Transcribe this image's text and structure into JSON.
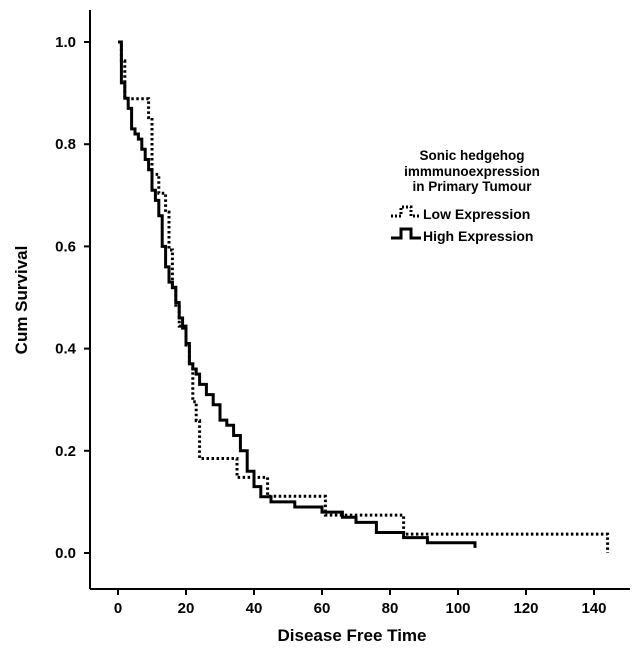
{
  "chart_data": {
    "type": "line",
    "title": "",
    "xlabel": "Disease Free Time",
    "ylabel": "Cum Survival",
    "xlim": [
      -10,
      150
    ],
    "ylim": [
      -0.05,
      1.05
    ],
    "x_ticks": [
      0,
      20,
      40,
      60,
      80,
      100,
      120,
      140
    ],
    "x_tick_labels": [
      "0",
      "20",
      "40",
      "60",
      "80",
      "100",
      "120",
      "140"
    ],
    "y_ticks": [
      0.0,
      0.2,
      0.4,
      0.6,
      0.8,
      1.0
    ],
    "y_tick_labels": [
      "0.0",
      "0.2",
      "0.4",
      "0.6",
      "0.8",
      "1.0"
    ],
    "grid": false,
    "legend": {
      "title_lines": [
        "Sonic hedgehog",
        "immmunoexpression",
        "in Primary Tumour"
      ],
      "placement": "top-right"
    },
    "series": [
      {
        "name": "Low Expression",
        "style": "dotted",
        "color": "#000000",
        "x": [
          0,
          1,
          2,
          3,
          5,
          9,
          10,
          11,
          12,
          14,
          15,
          16,
          17,
          18,
          20,
          21,
          22,
          23,
          24,
          35,
          44,
          61,
          84,
          144
        ],
        "y": [
          1.0,
          0.963,
          0.889,
          0.889,
          0.889,
          0.852,
          0.741,
          0.741,
          0.704,
          0.667,
          0.593,
          0.519,
          0.481,
          0.444,
          0.407,
          0.37,
          0.296,
          0.259,
          0.185,
          0.148,
          0.111,
          0.074,
          0.037,
          0.0
        ]
      },
      {
        "name": "High Expression",
        "style": "solid",
        "color": "#000000",
        "x": [
          0,
          1,
          2,
          3,
          4,
          5,
          6,
          7,
          8,
          9,
          10,
          11,
          12,
          13,
          14,
          15,
          16,
          17,
          18,
          19,
          20,
          21,
          22,
          23,
          24,
          26,
          28,
          30,
          32,
          34,
          36,
          38,
          40,
          42,
          45,
          52,
          60,
          66,
          70,
          76,
          84,
          91,
          105
        ],
        "y": [
          1.0,
          0.92,
          0.89,
          0.87,
          0.83,
          0.82,
          0.81,
          0.79,
          0.77,
          0.75,
          0.71,
          0.69,
          0.66,
          0.6,
          0.56,
          0.53,
          0.52,
          0.49,
          0.46,
          0.44,
          0.41,
          0.37,
          0.36,
          0.35,
          0.33,
          0.31,
          0.29,
          0.26,
          0.25,
          0.23,
          0.2,
          0.16,
          0.13,
          0.11,
          0.1,
          0.09,
          0.08,
          0.07,
          0.06,
          0.04,
          0.03,
          0.02,
          0.01
        ]
      }
    ]
  }
}
